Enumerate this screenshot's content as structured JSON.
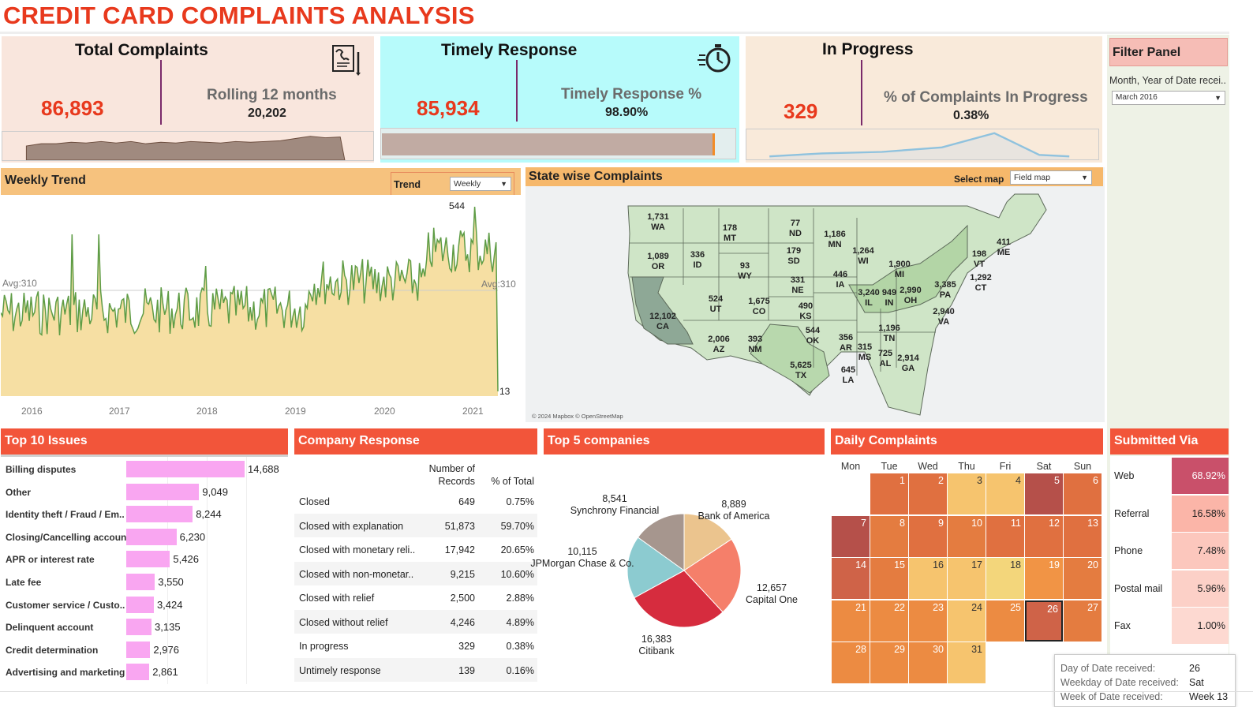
{
  "title": "CREDIT CARD COMPLAINTS ANALYSIS",
  "kpis": {
    "total": {
      "title": "Total Complaints",
      "value": "86,893",
      "label": "Rolling 12 months",
      "sub": "20,202"
    },
    "timely": {
      "title": "Timely Response",
      "value": "85,934",
      "label": "Timely Response %",
      "sub": "98.90%",
      "fill": 0.989
    },
    "progress": {
      "title": "In Progress",
      "value": "329",
      "label": "% of Complaints In Progress",
      "sub": "0.38%"
    }
  },
  "filter_panel": {
    "title": "Filter Panel",
    "label": "Month, Year of Date recei..",
    "selected": "March 2016"
  },
  "weekly": {
    "title": "Weekly Trend",
    "trend_label": "Trend",
    "trend_value": "Weekly",
    "max_label": "544",
    "min_label": "13",
    "avg_left": "Avg:310",
    "avg_right": "Avg:310",
    "years": [
      "2016",
      "2017",
      "2018",
      "2019",
      "2020",
      "2021"
    ]
  },
  "state_map": {
    "title": "State wise Complaints",
    "select_label": "Select map",
    "select_value": "Field map",
    "credit": "© 2024 Mapbox © OpenStreetMap",
    "states": [
      {
        "abbr": "WA",
        "value": "1,731"
      },
      {
        "abbr": "OR",
        "value": "1,089"
      },
      {
        "abbr": "CA",
        "value": "12,102"
      },
      {
        "abbr": "ID",
        "value": "336"
      },
      {
        "abbr": "MT",
        "value": "178"
      },
      {
        "abbr": "WY",
        "value": "93"
      },
      {
        "abbr": "UT",
        "value": "524"
      },
      {
        "abbr": "CO",
        "value": "1,675"
      },
      {
        "abbr": "AZ",
        "value": "2,006"
      },
      {
        "abbr": "NM",
        "value": "393"
      },
      {
        "abbr": "ND",
        "value": "77"
      },
      {
        "abbr": "SD",
        "value": "179"
      },
      {
        "abbr": "NE",
        "value": "331"
      },
      {
        "abbr": "KS",
        "value": "490"
      },
      {
        "abbr": "OK",
        "value": "544"
      },
      {
        "abbr": "TX",
        "value": "5,625"
      },
      {
        "abbr": "MN",
        "value": "1,186"
      },
      {
        "abbr": "IA",
        "value": "446"
      },
      {
        "abbr": "AR",
        "value": "356"
      },
      {
        "abbr": "LA",
        "value": "645"
      },
      {
        "abbr": "WI",
        "value": "1,264"
      },
      {
        "abbr": "IL",
        "value": "3,240"
      },
      {
        "abbr": "MS",
        "value": "315"
      },
      {
        "abbr": "MI",
        "value": "1,900"
      },
      {
        "abbr": "IN",
        "value": "949"
      },
      {
        "abbr": "TN",
        "value": "1,196"
      },
      {
        "abbr": "AL",
        "value": "725"
      },
      {
        "abbr": "OH",
        "value": "2,990"
      },
      {
        "abbr": "GA",
        "value": "2,914"
      },
      {
        "abbr": "PA",
        "value": "3,385"
      },
      {
        "abbr": "VA",
        "value": "2,940"
      },
      {
        "abbr": "VT",
        "value": "198"
      },
      {
        "abbr": "CT",
        "value": "1,292"
      },
      {
        "abbr": "ME",
        "value": "411"
      }
    ]
  },
  "top_issues": {
    "title": "Top 10 Issues",
    "items": [
      {
        "label": "Billing disputes",
        "value": 14688,
        "display": "14,688"
      },
      {
        "label": "Other",
        "value": 9049,
        "display": "9,049"
      },
      {
        "label": "Identity theft / Fraud / Em..",
        "value": 8244,
        "display": "8,244"
      },
      {
        "label": "Closing/Cancelling account",
        "value": 6230,
        "display": "6,230"
      },
      {
        "label": "APR or interest rate",
        "value": 5426,
        "display": "5,426"
      },
      {
        "label": "Late fee",
        "value": 3550,
        "display": "3,550"
      },
      {
        "label": "Customer service / Custo..",
        "value": 3424,
        "display": "3,424"
      },
      {
        "label": "Delinquent account",
        "value": 3135,
        "display": "3,135"
      },
      {
        "label": "Credit determination",
        "value": 2976,
        "display": "2,976"
      },
      {
        "label": "Advertising and marketing",
        "value": 2861,
        "display": "2,861"
      }
    ]
  },
  "company_response": {
    "title": "Company Response",
    "col1a": "Number of",
    "col1b": "Records",
    "col2": "% of Total",
    "rows": [
      {
        "label": "Closed",
        "records": "649",
        "pct": "0.75%"
      },
      {
        "label": "Closed with explanation",
        "records": "51,873",
        "pct": "59.70%"
      },
      {
        "label": "Closed with monetary reli..",
        "records": "17,942",
        "pct": "20.65%"
      },
      {
        "label": "Closed with non-monetar..",
        "records": "9,215",
        "pct": "10.60%"
      },
      {
        "label": "Closed with relief",
        "records": "2,500",
        "pct": "2.88%"
      },
      {
        "label": "Closed without relief",
        "records": "4,246",
        "pct": "4.89%"
      },
      {
        "label": "In progress",
        "records": "329",
        "pct": "0.38%"
      },
      {
        "label": "Untimely response",
        "records": "139",
        "pct": "0.16%"
      }
    ]
  },
  "chart_data": {
    "type": "pie",
    "title": "Top 5 companies",
    "slices": [
      {
        "name": "Bank of America",
        "value": 8889,
        "display": "8,889",
        "color": "#ebc48e"
      },
      {
        "name": "Capital One",
        "value": 12657,
        "display": "12,657",
        "color": "#f57f6a"
      },
      {
        "name": "Citibank",
        "value": 16383,
        "display": "16,383",
        "color": "#d62c3e"
      },
      {
        "name": "JPMorgan Chase & Co.",
        "value": 10115,
        "display": "10,115",
        "color": "#8ccbd0"
      },
      {
        "name": "Synchrony Financial",
        "value": 8541,
        "display": "8,541",
        "color": "#a6968e"
      }
    ]
  },
  "daily": {
    "title": "Daily Complaints",
    "days": [
      "Mon",
      "Tue",
      "Wed",
      "Thu",
      "Fri",
      "Sat",
      "Sun"
    ]
  },
  "submitted": {
    "title": "Submitted Via",
    "rows": [
      {
        "label": "Web",
        "value": "68.92%",
        "color": "#c9506a"
      },
      {
        "label": "Referral",
        "value": "16.58%",
        "color": "#fbb5a8"
      },
      {
        "label": "Phone",
        "value": "7.48%",
        "color": "#fcc7bd"
      },
      {
        "label": "Postal mail",
        "value": "5.96%",
        "color": "#fcd0c7"
      },
      {
        "label": "Fax",
        "value": "1.00%",
        "color": "#fdd9d1"
      }
    ]
  },
  "tooltip": {
    "day_label": "Day of Date received:",
    "day_value": "26",
    "weekday_label": "Weekday of Date received:",
    "weekday_value": "Sat",
    "week_label": "Week of Date received:",
    "week_value": "Week 13"
  }
}
